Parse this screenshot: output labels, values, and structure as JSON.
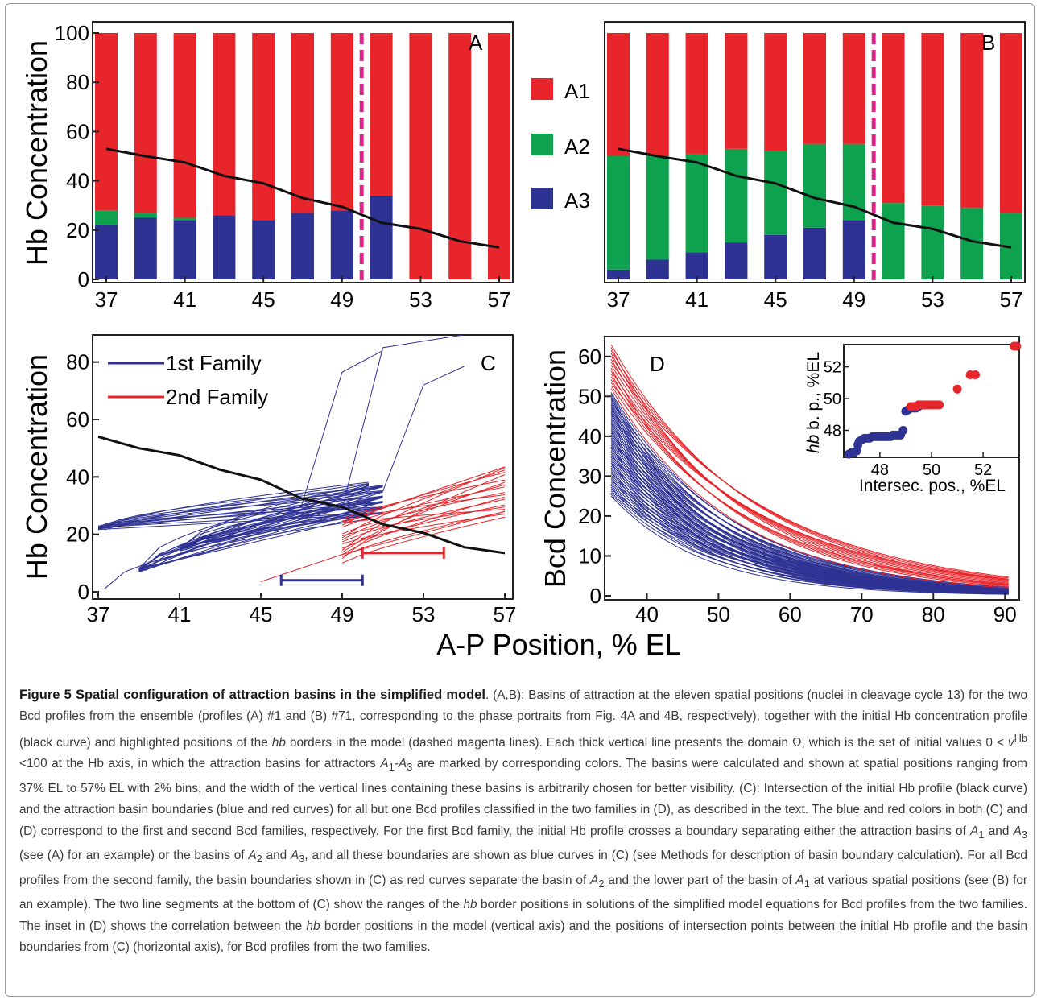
{
  "figure": {
    "panel_letters": [
      "A",
      "B",
      "C",
      "D"
    ],
    "shared_xlabel": "A-P Position, % EL",
    "colors": {
      "A1": "#e8252b",
      "A2": "#0ea24f",
      "A3": "#2e3293",
      "border": "#e0248c",
      "family1": "#2e3293",
      "family2": "#e8252b",
      "hb": "#111111"
    },
    "legend_ab": [
      "A1",
      "A2",
      "A3"
    ],
    "legend_c": [
      "1st Family",
      "2nd Family"
    ]
  },
  "chart_data": [
    {
      "panel": "A",
      "type": "bar",
      "ylabel": "Hb Concentration",
      "xlabel": "",
      "x": [
        37,
        39,
        41,
        43,
        45,
        47,
        49,
        51,
        53,
        55,
        57
      ],
      "xticks": [
        37,
        41,
        45,
        49,
        53,
        57
      ],
      "yticks": [
        0,
        20,
        40,
        60,
        80,
        100
      ],
      "ylim": [
        0,
        100
      ],
      "series": [
        {
          "name": "A3",
          "values": [
            22,
            25,
            24,
            26,
            24,
            27,
            28,
            34,
            0,
            0,
            0
          ]
        },
        {
          "name": "A2",
          "values": [
            6,
            2,
            1,
            0,
            0,
            0,
            0,
            0,
            0,
            0,
            0
          ]
        },
        {
          "name": "A1",
          "values": [
            72,
            73,
            75,
            74,
            76,
            73,
            72,
            66,
            100,
            100,
            100
          ]
        }
      ],
      "hb_profile": [
        53,
        50,
        47.5,
        42,
        39,
        33,
        29.5,
        23,
        20.5,
        15.5,
        13
      ],
      "hb_border": 50
    },
    {
      "panel": "B",
      "type": "bar",
      "xlabel": "",
      "x": [
        37,
        39,
        41,
        43,
        45,
        47,
        49,
        51,
        53,
        55,
        57
      ],
      "xticks": [
        37,
        41,
        45,
        49,
        53,
        57
      ],
      "ylim": [
        0,
        100
      ],
      "series": [
        {
          "name": "A3",
          "values": [
            4,
            8,
            11,
            15,
            18,
            21,
            24,
            0,
            0,
            0,
            0
          ]
        },
        {
          "name": "A2",
          "values": [
            46,
            42,
            40,
            38,
            34,
            34,
            31,
            31,
            30,
            29,
            27
          ]
        },
        {
          "name": "A1",
          "values": [
            50,
            50,
            49,
            47,
            48,
            45,
            45,
            69,
            70,
            71,
            73
          ]
        }
      ],
      "hb_profile": [
        53,
        50,
        47.5,
        42,
        39,
        33,
        29.5,
        23,
        20.5,
        15.5,
        13
      ],
      "hb_border": 50
    },
    {
      "panel": "C",
      "type": "line",
      "ylabel": "Hb Concentration",
      "xlabel": "",
      "xticks": [
        37,
        41,
        45,
        49,
        53,
        57
      ],
      "yticks": [
        0,
        20,
        40,
        60,
        80
      ],
      "xlim": [
        37,
        57
      ],
      "ylim": [
        0,
        90
      ],
      "series": [
        {
          "name": "Hb profile",
          "x": [
            37,
            39,
            41,
            43,
            45,
            47,
            49,
            51,
            53,
            55,
            57
          ],
          "y": [
            54,
            50,
            47.5,
            42.5,
            39,
            32.5,
            29.5,
            23.5,
            20.5,
            15.5,
            13.5
          ]
        },
        {
          "name": "1st Family",
          "family": 1,
          "x": [
            49,
            51,
            55
          ],
          "y": [
            29,
            85,
            89.5
          ]
        },
        {
          "name": "1st Family",
          "family": 1,
          "x": [
            51,
            53,
            55
          ],
          "y": [
            35,
            72,
            78.5
          ]
        },
        {
          "name": "1st Family",
          "family": 1,
          "x": [
            47,
            49,
            51
          ],
          "y": [
            30,
            76.5,
            84
          ]
        },
        {
          "name": "2nd Family",
          "family": 2,
          "x": [
            45,
            49,
            57
          ],
          "y": [
            3.5,
            13,
            28
          ]
        },
        {
          "name": "2nd Family",
          "family": 2,
          "x": [
            49,
            53,
            57
          ],
          "y": [
            24,
            34,
            43.5
          ]
        }
      ],
      "ranges": [
        {
          "name": "1st Family",
          "from": 46,
          "to": 50,
          "y": 4
        },
        {
          "name": "2nd Family",
          "from": 50,
          "to": 54,
          "y": 13.5
        }
      ]
    },
    {
      "panel": "D",
      "type": "line",
      "ylabel": "Bcd Concentration",
      "xlabel": "",
      "xticks": [
        40,
        50,
        60,
        70,
        80,
        90
      ],
      "yticks": [
        0,
        10,
        20,
        30,
        40,
        50,
        60
      ],
      "xlim": [
        35,
        92
      ],
      "ylim": [
        0,
        65
      ],
      "family1": {
        "name": "1st Family",
        "amplitude_at_35": [
          25,
          51
        ],
        "decay_length_pct_el": [
          13,
          18
        ]
      },
      "family2": {
        "name": "2nd Family",
        "amplitude_at_35": [
          52,
          63
        ],
        "decay_length_pct_el": [
          17,
          22
        ]
      },
      "inset": {
        "type": "scatter",
        "xlabel": "Intersec. pos., %EL",
        "ylabel_italic": "hb",
        "ylabel_rest": " b. p., %EL",
        "xticks": [
          48,
          50,
          52
        ],
        "yticks": [
          48,
          50,
          52
        ],
        "xlim": [
          46.6,
          53.4
        ],
        "ylim": [
          46.3,
          53.4
        ],
        "series": [
          {
            "name": "1st Family",
            "x": [
              46.8,
              46.9,
              47.0,
              47.1,
              47.15,
              47.2,
              47.3,
              47.4,
              47.5,
              47.6,
              47.7,
              47.8,
              47.9,
              48.0,
              48.1,
              48.2,
              48.3,
              48.4,
              48.5,
              48.6,
              48.7,
              48.8,
              48.9,
              49.0,
              49.1,
              49.2,
              49.3,
              49.4,
              49.5
            ],
            "y": [
              46.5,
              46.6,
              46.6,
              46.7,
              47.1,
              47.3,
              47.4,
              47.5,
              47.5,
              47.5,
              47.6,
              47.6,
              47.6,
              47.6,
              47.6,
              47.6,
              47.6,
              47.6,
              47.7,
              47.7,
              47.7,
              47.7,
              48.0,
              49.2,
              49.3,
              49.4,
              49.4,
              49.4,
              49.5
            ]
          },
          {
            "name": "2nd Family",
            "x": [
              49.2,
              49.3,
              49.4,
              49.5,
              49.6,
              49.7,
              49.8,
              49.9,
              50.0,
              50.1,
              50.2,
              50.3,
              51.0,
              51.5,
              51.7,
              53.2,
              53.3
            ],
            "y": [
              49.5,
              49.5,
              49.5,
              49.6,
              49.6,
              49.6,
              49.6,
              49.6,
              49.6,
              49.6,
              49.6,
              49.6,
              50.6,
              51.5,
              51.5,
              53.3,
              53.3
            ]
          }
        ]
      }
    }
  ],
  "caption": {
    "figure_label": "Figure 5",
    "title": "Spatial configuration of attraction basins in the simplified model",
    "p1": ". (A,B): Basins of attraction at the eleven spatial positions (nuclei in cleavage cycle 13) for the two Bcd profiles from the ensemble (profiles (A) #1 and (B) #71, corresponding to the phase portraits from Fig. 4A and 4B, respectively), together with the initial Hb concentration profile (black curve) and highlighted positions of the ",
    "hb1": "hb",
    "p2": " borders in the model (dashed magenta lines). Each thick vertical line presents the domain Ω, which is the set of initial values 0 < ",
    "v": "v",
    "vsup": "Hb",
    "p3": " <100 at the Hb axis, in which the attraction basins for attractors ",
    "a1": "A",
    "a1sub": "1",
    "dash": "-",
    "a3": "A",
    "a3sub": "3",
    "p4": " are marked by corresponding colors. The basins were calculated and shown at spatial positions ranging from 37% EL to 57% EL with 2% bins, and the width of the vertical lines containing these basins is arbitrarily chosen for better visibility. (C): Intersection of the initial Hb profile (black curve) and the attraction basin boundaries (blue and red curves) for all but one Bcd profiles classified in the two families in (D), as described in the text. The blue and red colors in both (C) and (D) correspond to the first and second Bcd families, respectively. For the first Bcd family, the initial Hb profile crosses a boundary separating either the attraction basins of ",
    "b1": "A",
    "b1sub": "1",
    "p5": " and ",
    "b3": "A",
    "b3sub": "3",
    "p6": " (see (A) for an example) or the basins of ",
    "c2": "A",
    "c2sub": "2",
    "p7": " and ",
    "c3": "A",
    "c3sub": "3",
    "p8": ", and all these boundaries are shown as blue curves in (C) (see Methods for description of basin boundary calculation). For all Bcd profiles from the second family, the basin boundaries shown in (C) as red curves separate the basin of ",
    "d2": "A",
    "d2sub": "2",
    "p9": " and the lower part of the basin of ",
    "d1": "A",
    "d1sub": "1",
    "p10": " at various spatial positions (see (B) for an example). The two line segments at the bottom of (C) show the ranges of the ",
    "hb2": "hb",
    "p11": " border positions in solutions of the simplified model equations for Bcd profiles from the two families. The inset in (D) shows the correlation between the ",
    "hb3": "hb",
    "p12": " border positions in the model (vertical axis) and the positions of intersection points between the initial Hb profile and the basin boundaries from (C) (horizontal axis), for Bcd profiles from the two families."
  }
}
